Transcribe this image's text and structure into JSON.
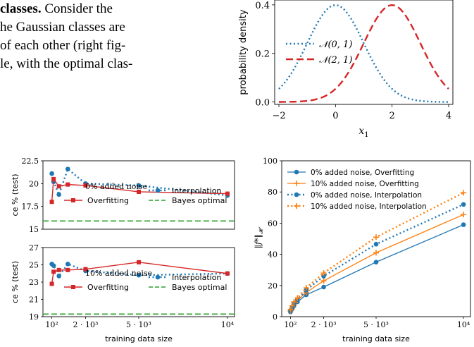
{
  "text_snippet": {
    "lines": [
      {
        "before": "",
        "bold": "classes.",
        "after": " Consider the"
      },
      {
        "before": "he Gaussian classes are",
        "bold": "",
        "after": ""
      },
      {
        "before": " of each other (right fig-",
        "bold": "",
        "after": ""
      },
      {
        "before": "le, with the optimal clas-",
        "bold": "",
        "after": ""
      }
    ]
  },
  "chart_data": [
    {
      "id": "gaussian-densities",
      "type": "line",
      "xlabel": "x",
      "xlabel_sub": "1",
      "ylabel": "probability density",
      "xlim": [
        -2.15,
        4.15
      ],
      "ylim": [
        -0.01,
        0.42
      ],
      "xticks": [
        {
          "v": -2,
          "label": "−2"
        },
        {
          "v": 0,
          "label": "0"
        },
        {
          "v": 2,
          "label": "2"
        },
        {
          "v": 4,
          "label": "4"
        }
      ],
      "yticks": [
        {
          "v": 0.0,
          "label": "0.0"
        },
        {
          "v": 0.2,
          "label": "0.2"
        },
        {
          "v": 0.4,
          "label": "0.4"
        }
      ],
      "series": [
        {
          "name": "𝒩(0, 1)",
          "mean": 0,
          "std": 1,
          "x_range": [
            -2,
            4
          ],
          "color": "#1f77b4",
          "style": "dotted"
        },
        {
          "name": "𝒩(2, 1)",
          "mean": 2,
          "std": 1,
          "x_range": [
            -2,
            4
          ],
          "color": "#d62728",
          "style": "dashed"
        }
      ],
      "legend": "center-left"
    },
    {
      "id": "ce-0-noise",
      "type": "line",
      "ylabel": "ce % (test)",
      "xlim": [
        -400,
        10400
      ],
      "ylim": [
        15,
        22.5
      ],
      "yticks": [
        {
          "v": 15,
          "label": "15"
        },
        {
          "v": 17.5,
          "label": "17.5"
        },
        {
          "v": 20,
          "label": "20"
        },
        {
          "v": 22.5,
          "label": "22.5"
        }
      ],
      "annotation": "0% added noise",
      "series": [
        {
          "name": "Interpolation",
          "color": "#1f77b4",
          "style": "dotted",
          "marker": "circle",
          "x": [
            100,
            200,
            500,
            1000,
            2000,
            5000,
            10000
          ],
          "y": [
            21.1,
            20.2,
            18.8,
            21.6,
            20.0,
            19.8,
            18.7
          ]
        },
        {
          "name": "Overfitting",
          "color": "#d62728",
          "style": "solid",
          "marker": "square",
          "x": [
            100,
            200,
            500,
            1000,
            2000,
            5000,
            10000
          ],
          "y": [
            18.0,
            20.5,
            19.7,
            19.9,
            19.8,
            19.1,
            18.9
          ]
        },
        {
          "name": "Bayes optimal",
          "color": "#2ca02c",
          "style": "dashed",
          "y_const": 15.9
        }
      ]
    },
    {
      "id": "ce-10-noise",
      "type": "line",
      "ylabel": "ce % (test)",
      "xlabel": "training data size",
      "xlim": [
        -400,
        10400
      ],
      "ylim": [
        19,
        27
      ],
      "xticks": [
        {
          "v": 100,
          "label": "10²"
        },
        {
          "v": 2000,
          "label": "2 · 10³"
        },
        {
          "v": 5000,
          "label": "5 · 10³"
        },
        {
          "v": 10000,
          "label": "10⁴"
        }
      ],
      "yticks": [
        {
          "v": 19,
          "label": "19"
        },
        {
          "v": 21,
          "label": "21"
        },
        {
          "v": 23,
          "label": "23"
        },
        {
          "v": 25,
          "label": "25"
        },
        {
          "v": 27,
          "label": "27"
        }
      ],
      "annotation": "10% added noise",
      "series": [
        {
          "name": "Interpolation",
          "color": "#1f77b4",
          "style": "dotted",
          "marker": "circle",
          "x": [
            100,
            200,
            500,
            1000,
            2000,
            5000,
            10000
          ],
          "y": [
            25.1,
            24.9,
            23.7,
            25.1,
            24.3,
            23.8,
            24.0
          ]
        },
        {
          "name": "Overfitting",
          "color": "#d62728",
          "style": "solid",
          "marker": "square",
          "x": [
            100,
            200,
            500,
            1000,
            2000,
            5000,
            10000
          ],
          "y": [
            22.8,
            24.2,
            24.4,
            24.4,
            24.5,
            25.3,
            24.0
          ]
        },
        {
          "name": "Bayes optimal",
          "color": "#2ca02c",
          "style": "dashed",
          "y_const": 19.3
        }
      ]
    },
    {
      "id": "rkhs-norm",
      "type": "line",
      "ylabel": "‖f*‖",
      "ylabel_sub": "𝓗",
      "xlabel": "training data size",
      "xlim": [
        -400,
        10400
      ],
      "ylim": [
        0,
        100
      ],
      "xticks": [
        {
          "v": 100,
          "label": "10²"
        },
        {
          "v": 2000,
          "label": "2 · 10³"
        },
        {
          "v": 5000,
          "label": "5 · 10³"
        },
        {
          "v": 10000,
          "label": "10⁴"
        }
      ],
      "yticks": [
        {
          "v": 0,
          "label": "0"
        },
        {
          "v": 20,
          "label": "20"
        },
        {
          "v": 40,
          "label": "40"
        },
        {
          "v": 60,
          "label": "60"
        },
        {
          "v": 80,
          "label": "80"
        },
        {
          "v": 100,
          "label": "100"
        }
      ],
      "legend": "upper-left",
      "series": [
        {
          "name": "0% added noise, Overfitting",
          "color": "#1f77b4",
          "style": "solid",
          "marker": "circle",
          "x": [
            100,
            200,
            300,
            500,
            1000,
            2000,
            5000,
            10000
          ],
          "y": [
            3,
            5,
            7,
            9.5,
            14,
            19,
            35,
            59
          ]
        },
        {
          "name": "10% added noise, Overfitting",
          "color": "#ff7f0e",
          "style": "solid",
          "marker": "plus",
          "x": [
            100,
            200,
            300,
            500,
            1000,
            2000,
            5000,
            10000
          ],
          "y": [
            3.5,
            5.5,
            8,
            10.5,
            15.5,
            23,
            41,
            65.5
          ]
        },
        {
          "name": "0% added noise, Interpolation",
          "color": "#1f77b4",
          "style": "dotted",
          "marker": "circle",
          "x": [
            100,
            200,
            300,
            500,
            1000,
            2000,
            5000,
            10000
          ],
          "y": [
            4,
            6,
            8.5,
            11,
            17,
            26,
            46.5,
            72
          ]
        },
        {
          "name": "10% added noise, Interpolation",
          "color": "#ff7f0e",
          "style": "dotted",
          "marker": "plus",
          "x": [
            100,
            200,
            300,
            500,
            1000,
            2000,
            5000,
            10000
          ],
          "y": [
            4.5,
            7,
            9.5,
            12,
            18.5,
            28,
            51,
            79.5
          ]
        }
      ]
    }
  ]
}
